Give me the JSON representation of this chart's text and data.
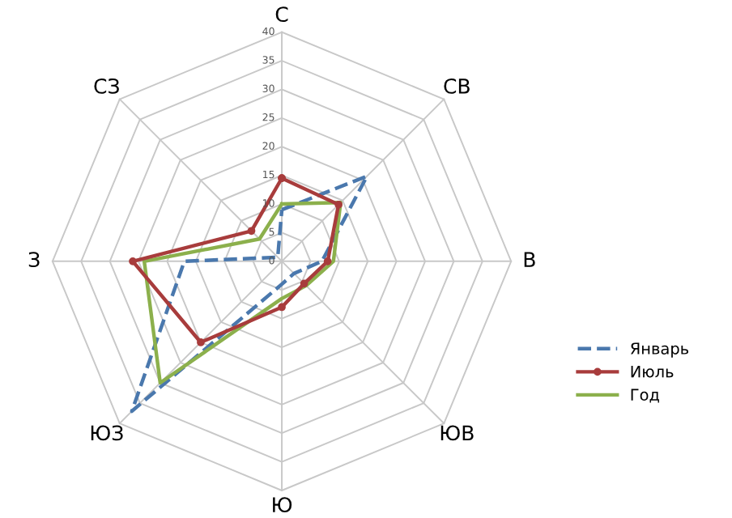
{
  "chart_data": {
    "type": "radar",
    "categories": [
      "С",
      "СВ",
      "В",
      "ЮВ",
      "Ю",
      "ЮЗ",
      "З",
      "СЗ"
    ],
    "ylim": [
      0,
      40
    ],
    "yticks": [
      0,
      5,
      10,
      15,
      20,
      25,
      30,
      35,
      40
    ],
    "grid": true,
    "legend": "right",
    "series": [
      {
        "name": "Январь",
        "color": "#4a78ad",
        "line_style": "dashed",
        "marker": "none",
        "values": [
          9,
          21,
          7,
          3,
          4,
          37,
          17,
          1
        ]
      },
      {
        "name": "Июль",
        "color": "#a83c3c",
        "line_style": "solid",
        "marker": "circle",
        "values": [
          14.5,
          14,
          8,
          5.5,
          8,
          20,
          26,
          7.5
        ]
      },
      {
        "name": "Год",
        "color": "#8cb04c",
        "line_style": "solid",
        "marker": "none",
        "values": [
          10,
          14.5,
          9,
          6,
          6.5,
          30,
          24,
          5.5
        ]
      }
    ]
  }
}
